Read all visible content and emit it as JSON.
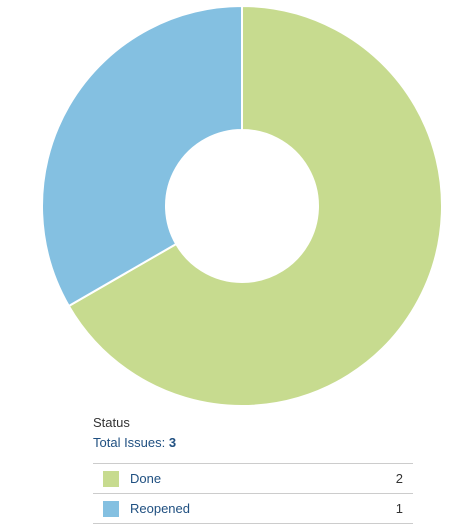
{
  "chart_data": {
    "type": "pie",
    "donut": true,
    "title": "",
    "slices": [
      {
        "label": "Done",
        "value": 2,
        "color": "#c7db8f"
      },
      {
        "label": "Reopened",
        "value": 1,
        "color": "#84c0e1"
      }
    ],
    "total_label": "Total Issues:",
    "total_value": 3
  },
  "legend": {
    "title": "Status",
    "rows": [
      {
        "label": "Done",
        "count": "2",
        "color": "#c7db8f"
      },
      {
        "label": "Reopened",
        "count": "1",
        "color": "#84c0e1"
      }
    ]
  }
}
